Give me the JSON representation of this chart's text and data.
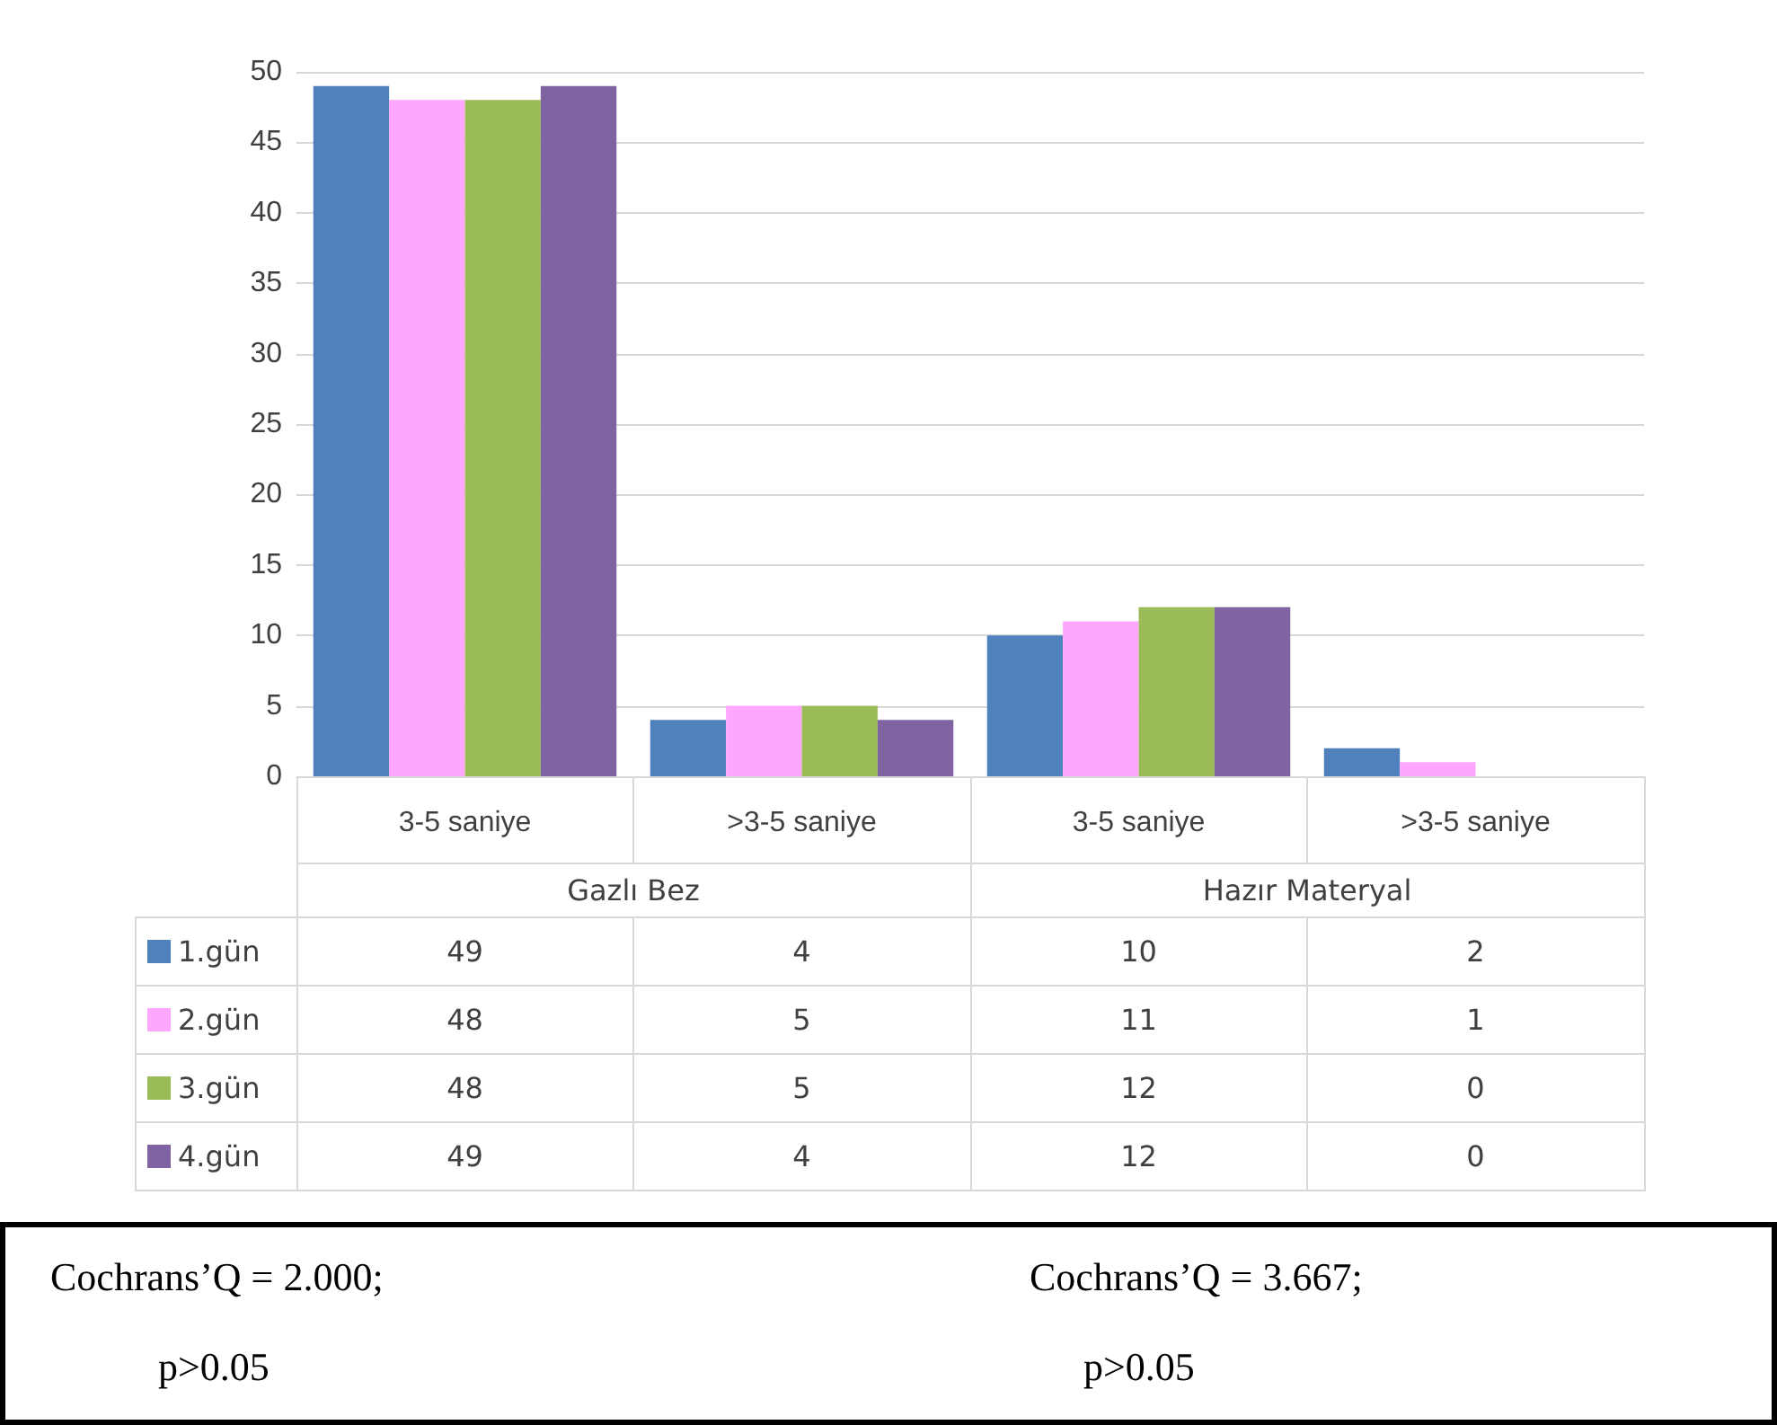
{
  "chart_data": {
    "type": "bar",
    "categories": [
      "3-5 saniye",
      ">3-5 saniye",
      "3-5 saniye",
      ">3-5 saniye"
    ],
    "series": [
      {
        "name": "1.gün",
        "color": "#4f81bd",
        "values": [
          49,
          4,
          10,
          2
        ]
      },
      {
        "name": "2.gün",
        "color": "#ffa6ff",
        "values": [
          48,
          5,
          11,
          1
        ]
      },
      {
        "name": "3.gün",
        "color": "#9bbb59",
        "values": [
          48,
          5,
          12,
          0
        ]
      },
      {
        "name": "4.gün",
        "color": "#8064a2",
        "values": [
          49,
          4,
          12,
          0
        ]
      }
    ],
    "ylim": [
      0,
      50
    ],
    "yticks": [
      0,
      5,
      10,
      15,
      20,
      25,
      30,
      35,
      40,
      45,
      50
    ],
    "grid": "y",
    "legend": "bottom left",
    "data_labels": true,
    "annotations": [
      "Gazlı Bez",
      "Hazır Materyal",
      "Cochrans’Q = 2.000;",
      "p>0.05",
      "Cochrans’Q = 3.667;",
      "p>0.05"
    ]
  }
}
